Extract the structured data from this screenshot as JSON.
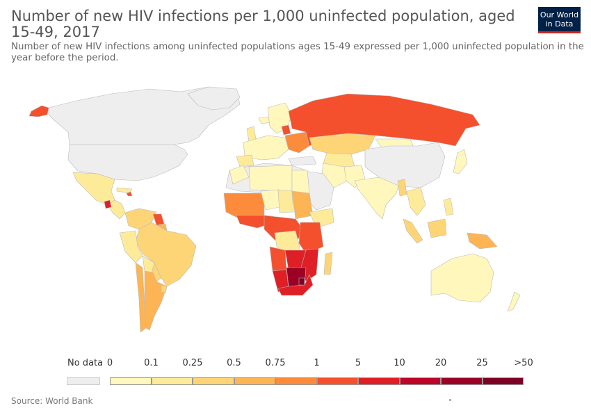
{
  "header": {
    "title": "Number of new HIV infections per 1,000 uninfected population, aged 15-49, 2017",
    "subtitle_line1": "Number of new HIV infections among uninfected populations ages 15-49 expressed per 1,000 uninfected population in the",
    "subtitle_line2": "year before the period."
  },
  "logo": {
    "line1": "Our World",
    "line2": "in Data",
    "bg_color": "#002147",
    "accent_color": "#ce261e"
  },
  "legend": {
    "no_data_label": "No data",
    "no_data_color": "#eeeeee",
    "ticks": [
      "0",
      "0.1",
      "0.25",
      "0.5",
      "0.75",
      "1",
      "5",
      "10",
      "20",
      "25",
      ">50"
    ],
    "bin_colors": [
      "#fff7bc",
      "#feeb9a",
      "#fdd576",
      "#fdb454",
      "#fc8c3b",
      "#f4502e",
      "#de1f26",
      "#bc0527",
      "#9b0125",
      "#7d0025"
    ]
  },
  "footer": {
    "source": "Source: World Bank"
  },
  "map_colors": {
    "no_data": "#eeeeee",
    "border": "#bbbbbb",
    "c0": "#fff7bc",
    "c1": "#feeb9a",
    "c2": "#fdd576",
    "c3": "#fdb454",
    "c4": "#fc8c3b",
    "c5": "#f4502e",
    "c6": "#de1f26",
    "c7": "#bc0527",
    "c8": "#9b0125",
    "c9": "#7d0025"
  }
}
